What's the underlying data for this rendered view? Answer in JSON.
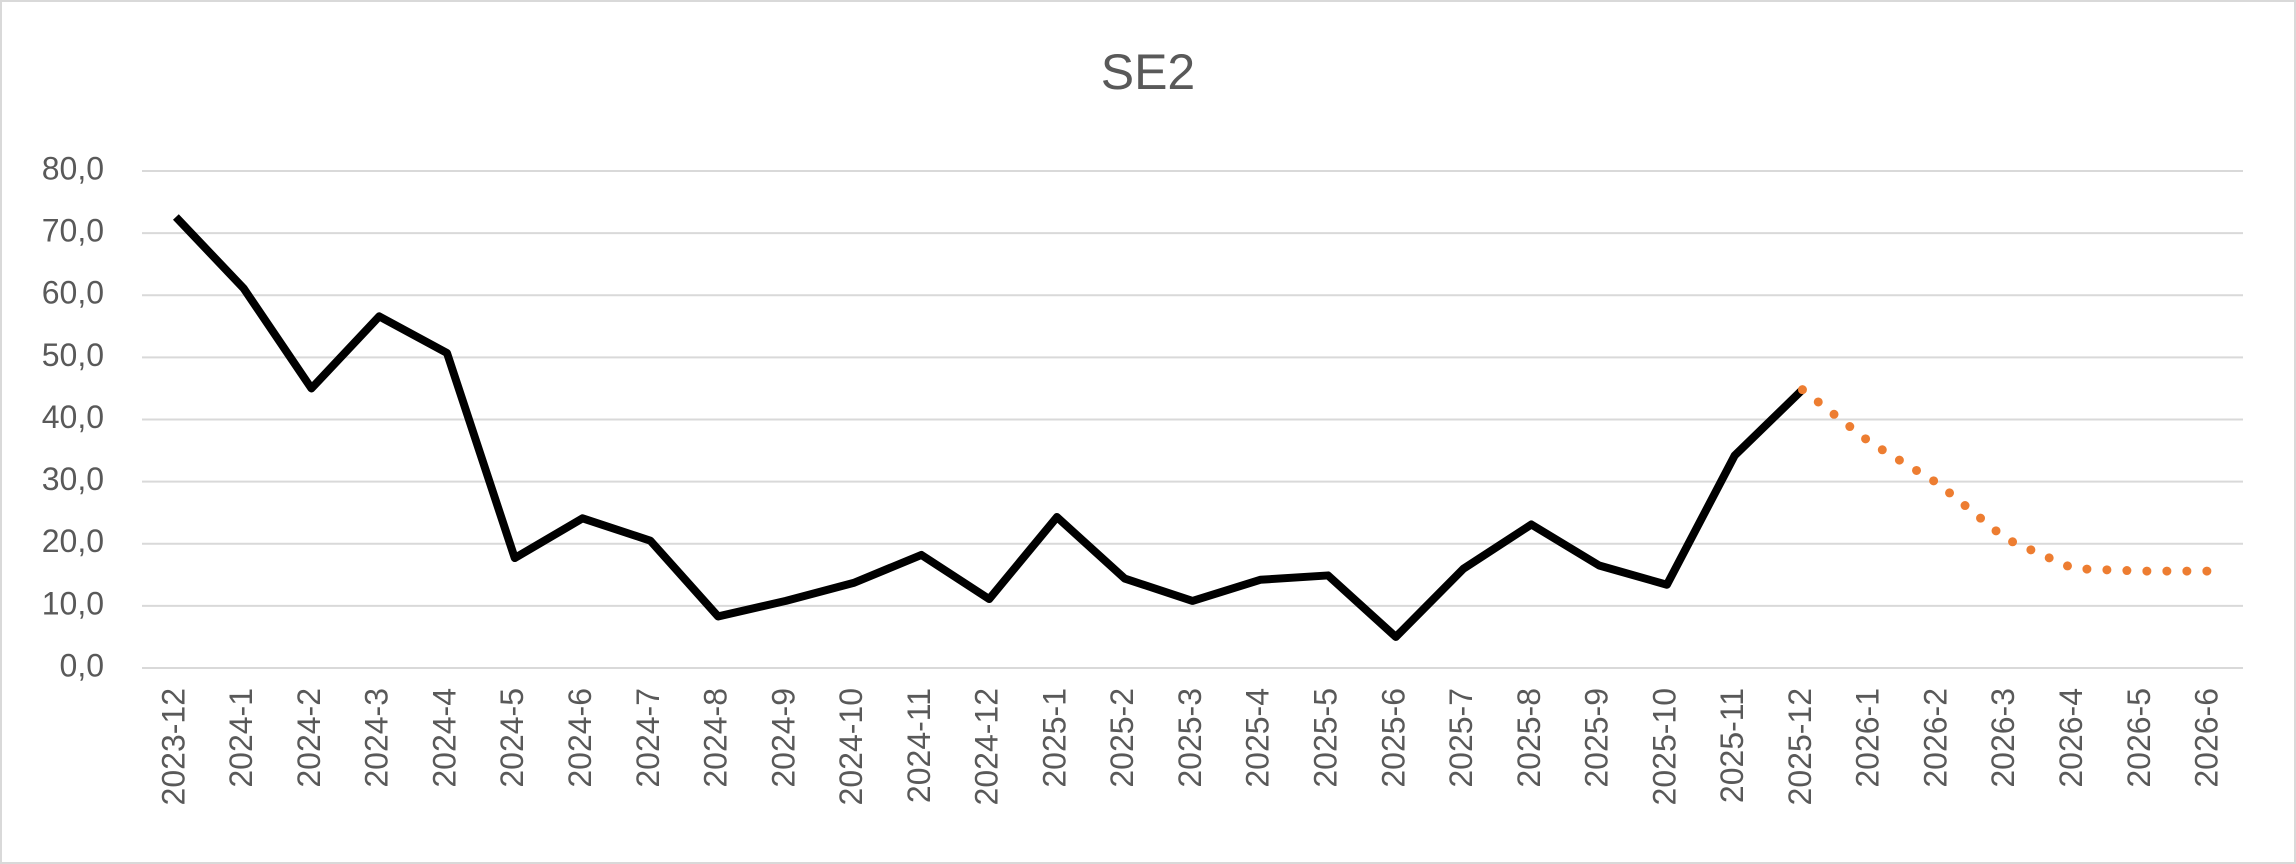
{
  "chart_data": {
    "type": "line",
    "title": "SE2",
    "categories": [
      "2023-12",
      "2024-1",
      "2024-2",
      "2024-3",
      "2024-4",
      "2024-5",
      "2024-6",
      "2024-7",
      "2024-8",
      "2024-9",
      "2024-10",
      "2024-11",
      "2024-12",
      "2025-1",
      "2025-2",
      "2025-3",
      "2025-4",
      "2025-5",
      "2025-6",
      "2025-7",
      "2025-8",
      "2025-9",
      "2025-10",
      "2025-11",
      "2025-12",
      "2026-1",
      "2026-2",
      "2026-3",
      "2026-4",
      "2026-5",
      "2026-6"
    ],
    "series": [
      {
        "color": "#000000",
        "dotted": false,
        "values": [
          72.6,
          61.1,
          45.0,
          56.6,
          50.7,
          17.7,
          24.1,
          20.5,
          8.3,
          10.8,
          13.7,
          18.2,
          11.1,
          24.3,
          14.4,
          10.8,
          14.2,
          14.9,
          5.0,
          16.0,
          23.1,
          16.5,
          13.4,
          34.2,
          44.8,
          null,
          null,
          null,
          null,
          null,
          null
        ]
      },
      {
        "color": "#ed7d31",
        "dotted": true,
        "values": [
          null,
          null,
          null,
          null,
          null,
          null,
          null,
          null,
          null,
          null,
          null,
          null,
          null,
          null,
          null,
          null,
          null,
          null,
          null,
          null,
          null,
          null,
          null,
          null,
          44.8,
          36.3,
          29.7,
          20.8,
          16.0,
          15.6,
          15.6
        ]
      }
    ],
    "ylim": [
      0,
      80
    ],
    "yticks": [
      {
        "value": 0,
        "label": "0,0"
      },
      {
        "value": 10,
        "label": "10,0"
      },
      {
        "value": 20,
        "label": "20,0"
      },
      {
        "value": 30,
        "label": "30,0"
      },
      {
        "value": 40,
        "label": "40,0"
      },
      {
        "value": 50,
        "label": "50,0"
      },
      {
        "value": 60,
        "label": "60,0"
      },
      {
        "value": 70,
        "label": "70,0"
      },
      {
        "value": 80,
        "label": "80,0"
      }
    ],
    "grid": true
  }
}
